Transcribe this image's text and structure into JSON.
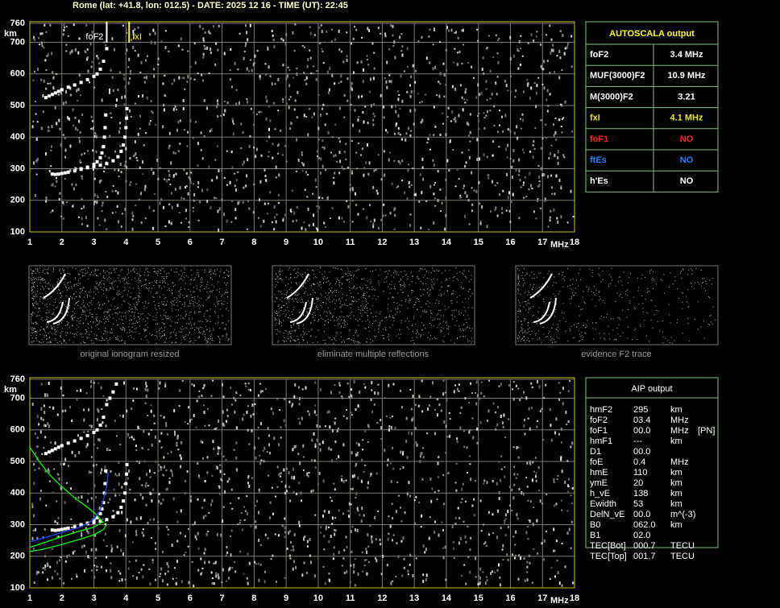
{
  "header": {
    "title": "Rome (lat: +41.8, lon: 012.5) - DATE: 2025 12 16 - TIME (UT): 22:45"
  },
  "chart_data": [
    {
      "type": "scatter",
      "xlabel": "MHz",
      "ylabel": "km",
      "xlim": [
        1,
        18
      ],
      "ylim": [
        100,
        760
      ],
      "xticks": [
        1,
        2,
        3,
        4,
        5,
        6,
        7,
        8,
        9,
        10,
        11,
        12,
        13,
        14,
        15,
        16,
        17,
        18
      ],
      "yticks": [
        100,
        200,
        300,
        400,
        500,
        600,
        700,
        760
      ],
      "grid": true,
      "markers": [
        {
          "label": "foF2",
          "x": 3.4,
          "color": "#ffffff"
        },
        {
          "label": "fxI",
          "x": 4.1,
          "color": "#ffff00"
        }
      ],
      "series": [
        {
          "mode": "points",
          "color": "#ffffff",
          "x": [
            1.7,
            1.8,
            1.9,
            2.0,
            2.1,
            2.2,
            2.4,
            2.6,
            2.8,
            3.0,
            3.1,
            3.2,
            3.25,
            3.3,
            3.33,
            3.35,
            3.37
          ],
          "values": [
            283,
            282,
            283,
            285,
            287,
            289,
            293,
            298,
            305,
            314,
            322,
            335,
            350,
            370,
            400,
            430,
            470
          ]
        },
        {
          "mode": "points",
          "color": "#ffffff",
          "x": [
            2.6,
            2.8,
            3.0,
            3.2,
            3.4,
            3.6,
            3.75,
            3.85,
            3.92,
            3.97,
            4.0,
            4.02,
            4.03
          ],
          "values": [
            300,
            303,
            307,
            311,
            316,
            325,
            338,
            355,
            375,
            400,
            430,
            460,
            490
          ]
        },
        {
          "mode": "points",
          "color": "#ffffff",
          "x": [
            1.5,
            1.6,
            1.7,
            1.8,
            1.9,
            2.0,
            2.2,
            2.4,
            2.6,
            2.8,
            3.0,
            3.1,
            3.2,
            3.3,
            3.4
          ],
          "values": [
            525,
            530,
            535,
            540,
            545,
            550,
            558,
            565,
            573,
            582,
            592,
            600,
            615,
            640,
            680
          ]
        }
      ]
    },
    {
      "type": "scatter",
      "xlabel": "MHz",
      "ylabel": "km",
      "xlim": [
        1,
        18
      ],
      "ylim": [
        100,
        760
      ],
      "xticks": [
        1,
        2,
        3,
        4,
        5,
        6,
        7,
        8,
        9,
        10,
        11,
        12,
        13,
        14,
        15,
        16,
        17,
        18
      ],
      "yticks": [
        100,
        200,
        300,
        400,
        500,
        600,
        700,
        760
      ],
      "grid": true,
      "series": [
        {
          "mode": "points",
          "color": "#ffffff",
          "x": [
            1.7,
            1.8,
            1.9,
            2.0,
            2.1,
            2.2,
            2.4,
            2.6,
            2.8,
            3.0,
            3.1,
            3.2,
            3.25,
            3.3,
            3.33,
            3.35,
            3.37
          ],
          "values": [
            283,
            282,
            283,
            285,
            287,
            289,
            293,
            298,
            305,
            314,
            322,
            335,
            350,
            370,
            400,
            430,
            470
          ]
        },
        {
          "mode": "points",
          "color": "#ffffff",
          "x": [
            2.6,
            2.8,
            3.0,
            3.2,
            3.4,
            3.6,
            3.75,
            3.85,
            3.92,
            3.97,
            4.0,
            4.02,
            4.03
          ],
          "values": [
            300,
            303,
            307,
            311,
            316,
            325,
            338,
            355,
            375,
            400,
            430,
            460,
            490
          ]
        },
        {
          "mode": "points",
          "color": "#ffffff",
          "x": [
            1.5,
            1.6,
            1.7,
            1.8,
            1.9,
            2.0,
            2.2,
            2.4,
            2.6,
            2.8,
            3.0,
            3.1,
            3.2,
            3.3,
            3.4,
            3.5,
            3.6,
            3.7
          ],
          "values": [
            525,
            530,
            535,
            540,
            545,
            550,
            558,
            565,
            573,
            582,
            592,
            600,
            615,
            640,
            680,
            700,
            720,
            745
          ]
        },
        {
          "mode": "line",
          "color": "#00ff00",
          "x": [
            1.0,
            1.3,
            1.6,
            2.0,
            2.4,
            2.8,
            3.1,
            3.3
          ],
          "values": [
            545,
            500,
            460,
            420,
            385,
            355,
            330,
            305
          ]
        },
        {
          "mode": "line",
          "color": "#00ff00",
          "x": [
            1.0,
            1.4,
            1.8,
            2.2,
            2.6,
            3.0,
            3.3,
            3.4
          ],
          "values": [
            215,
            222,
            232,
            243,
            255,
            268,
            285,
            300
          ]
        },
        {
          "mode": "line",
          "color": "#00ff00",
          "x": [
            1.0,
            1.5,
            2.0,
            2.5,
            3.0,
            3.3
          ],
          "values": [
            228,
            245,
            262,
            278,
            292,
            310
          ]
        },
        {
          "mode": "line",
          "color": "#2040ff",
          "x": [
            1.0,
            1.5,
            2.0,
            2.5,
            2.8,
            3.0,
            3.2,
            3.3,
            3.4,
            3.45
          ],
          "values": [
            245,
            260,
            275,
            290,
            302,
            318,
            345,
            380,
            420,
            465
          ]
        }
      ]
    }
  ],
  "thumbnails": {
    "captions": [
      "original ionogram resized",
      "eliminate multiple reflections",
      "evidence F2 trace"
    ]
  },
  "autoscala": {
    "title": "AUTOSCALA output",
    "rows": [
      {
        "label": "foF2",
        "value": "3.4 MHz",
        "color": "#ffffff"
      },
      {
        "label": "MUF(3000)F2",
        "value": "10.9 MHz",
        "color": "#ffffff"
      },
      {
        "label": "M(3000)F2",
        "value": "3.21",
        "color": "#ffffff"
      },
      {
        "label": "fxI",
        "value": "4.1 MHz",
        "color": "#e6e600"
      },
      {
        "label": "foF1",
        "value": "NO",
        "color": "#ff2020"
      },
      {
        "label": "ftEs",
        "value": "NO",
        "color": "#2080ff"
      },
      {
        "label": "h'Es",
        "value": "NO",
        "color": "#ffffff"
      }
    ]
  },
  "aip": {
    "title": "AIP output",
    "rows": [
      [
        "hmF2",
        "295",
        "km"
      ],
      [
        "foF2",
        "03.4",
        "MHz"
      ],
      [
        "foF1",
        "00.0",
        "MHz",
        "[PN]"
      ],
      [
        "hmF1",
        "---",
        "km"
      ],
      [
        "D1",
        "00.0"
      ],
      [
        "foE",
        "0.4",
        "MHz"
      ],
      [
        "hmE",
        "110",
        "km"
      ],
      [
        "ymE",
        "20",
        "km"
      ],
      [
        "h_vE",
        "138",
        "km"
      ],
      [
        "Ewidth",
        "53",
        "km"
      ],
      [
        "DelN_vE",
        "00.0",
        "m^(-3)"
      ],
      [
        "B0",
        "062.0",
        "km"
      ],
      [
        "B1",
        "02.0"
      ],
      [
        "TEC[Bot]",
        "000.7",
        "TECU"
      ],
      [
        "TEC[Top]",
        "001.7",
        "TECU"
      ]
    ]
  }
}
